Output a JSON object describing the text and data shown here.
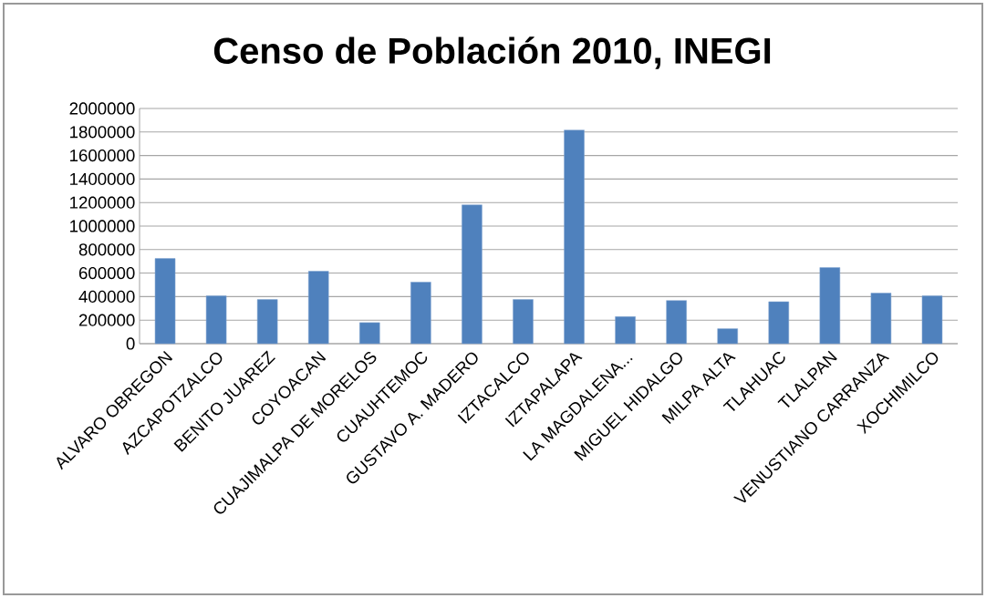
{
  "chart_data": {
    "type": "bar",
    "title": "Censo de Población 2010, INEGI",
    "categories": [
      "ALVARO OBREGON",
      "AZCAPOTZALCO",
      "BENITO JUAREZ",
      "COYOACAN",
      "CUAJIMALPA DE MORELOS",
      "CUAUHTEMOC",
      "GUSTAVO A. MADERO",
      "IZTACALCO",
      "IZTAPALAPA",
      "LA MAGDALENA...",
      "MIGUEL HIDALGO",
      "MILPA ALTA",
      "TLAHUAC",
      "TLALPAN",
      "VENUSTIANO CARRANZA",
      "XOCHIMILCO"
    ],
    "values": [
      724000,
      406000,
      375000,
      616000,
      179000,
      523000,
      1180000,
      375000,
      1816000,
      230000,
      367000,
      127000,
      357000,
      647000,
      430000,
      406000
    ],
    "color": "#4f81bd",
    "ylim": [
      0,
      2000000
    ],
    "yticks": [
      0,
      200000,
      400000,
      600000,
      800000,
      1000000,
      1200000,
      1400000,
      1600000,
      1800000,
      2000000
    ],
    "grid": "y"
  }
}
